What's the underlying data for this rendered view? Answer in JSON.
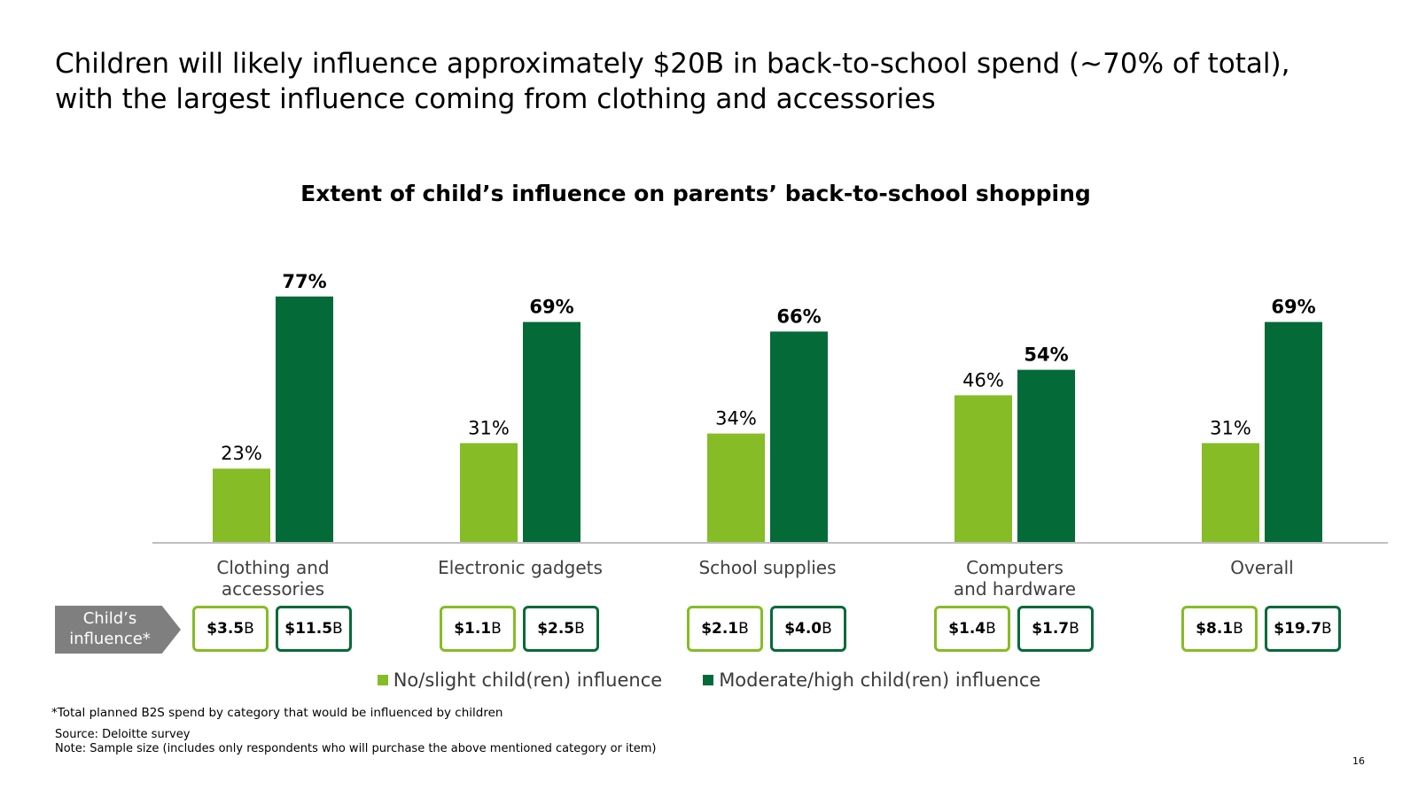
{
  "headline": "Children will likely influence approximately $20B in back-to-school spend (~70% of total), with the largest influence coming from clothing and accessories",
  "chart_data": {
    "type": "bar",
    "title": "Extent of child’s influence on parents’ back-to-school shopping",
    "categories": [
      "Clothing and accessories",
      "Electronic gadgets",
      "School supplies",
      "Computers and hardware",
      "Overall"
    ],
    "category_lines": [
      [
        "Clothing and",
        "accessories"
      ],
      [
        "Electronic gadgets"
      ],
      [
        "School supplies"
      ],
      [
        "Computers",
        "and hardware"
      ],
      [
        "Overall"
      ]
    ],
    "series": [
      {
        "name": "No/slight child(ren) influence",
        "values": [
          23,
          31,
          34,
          46,
          31
        ],
        "labels": [
          "23%",
          "31%",
          "34%",
          "46%",
          "31%"
        ],
        "color": "#86bc25",
        "bold_labels": false
      },
      {
        "name": "Moderate/high child(ren) influence",
        "values": [
          77,
          69,
          66,
          54,
          69
        ],
        "labels": [
          "77%",
          "69%",
          "66%",
          "54%",
          "69%"
        ],
        "color": "#046a38",
        "bold_labels": true
      }
    ],
    "ylim": [
      0,
      100
    ],
    "xlabel": "",
    "ylabel": "",
    "grid": false,
    "legend_position": "bottom"
  },
  "spend": {
    "label_lines": [
      "Child’s",
      "influence*"
    ],
    "unit_suffix": "B",
    "rows": [
      {
        "no_slight": "$3.5",
        "moderate_high": "$11.5"
      },
      {
        "no_slight": "$1.1",
        "moderate_high": "$2.5"
      },
      {
        "no_slight": "$2.1",
        "moderate_high": "$4.0"
      },
      {
        "no_slight": "$1.4",
        "moderate_high": "$1.7"
      },
      {
        "no_slight": "$8.1",
        "moderate_high": "$19.7"
      }
    ]
  },
  "colors": {
    "light_green": "#86bc25",
    "dark_green": "#046a38",
    "axis": "#bfbfbf",
    "category_text": "#404040",
    "label_box": "#7f7f7f"
  },
  "footnote": "*Total planned B2S spend by category that would be influenced by children",
  "source": "Source: Deloitte survey",
  "note": "Note: Sample size (includes only respondents who will purchase the above mentioned category or item)",
  "page_number": "16"
}
